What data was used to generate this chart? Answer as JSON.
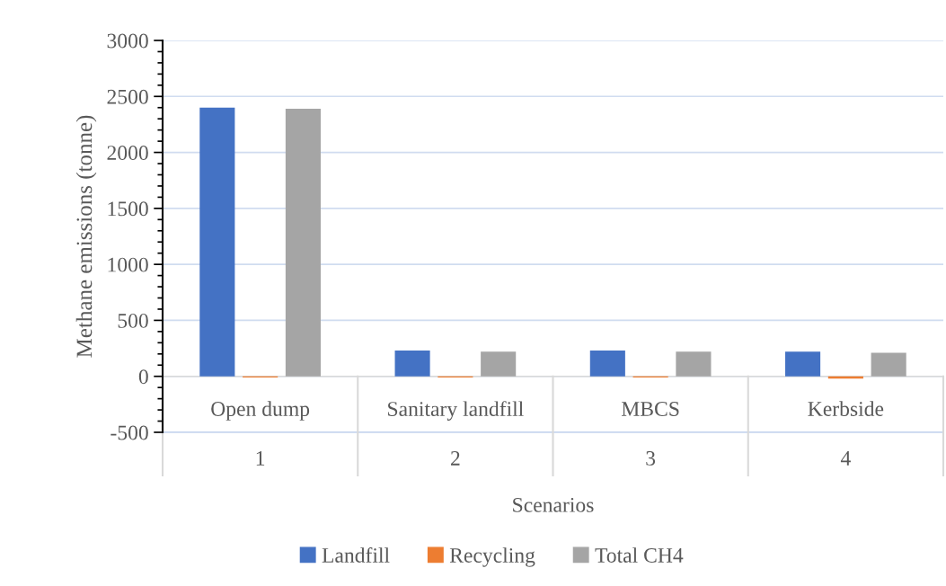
{
  "chart_data": {
    "type": "bar",
    "xlabel": "Scenarios",
    "ylabel": "Methane emissions (tonne)",
    "categories": [
      "Open dump",
      "Sanitary landfill",
      "MBCS",
      "Kerbside"
    ],
    "series": [
      {
        "name": "Landfill",
        "color": "#4472c4",
        "values": [
          2400,
          230,
          230,
          220
        ]
      },
      {
        "name": "Recycling",
        "color": "#ed7d31",
        "values": [
          -10,
          -10,
          -10,
          -20
        ]
      },
      {
        "name": "Total CH4",
        "color": "#a5a5a5",
        "values": [
          2390,
          220,
          220,
          210
        ]
      }
    ],
    "ylim": [
      -500,
      3000
    ],
    "yticks": [
      -500,
      0,
      500,
      1000,
      1500,
      2000,
      2500,
      3000
    ],
    "grid": "y",
    "legend": "bottom",
    "annotations": [
      "1",
      "2",
      "3",
      "4"
    ]
  }
}
